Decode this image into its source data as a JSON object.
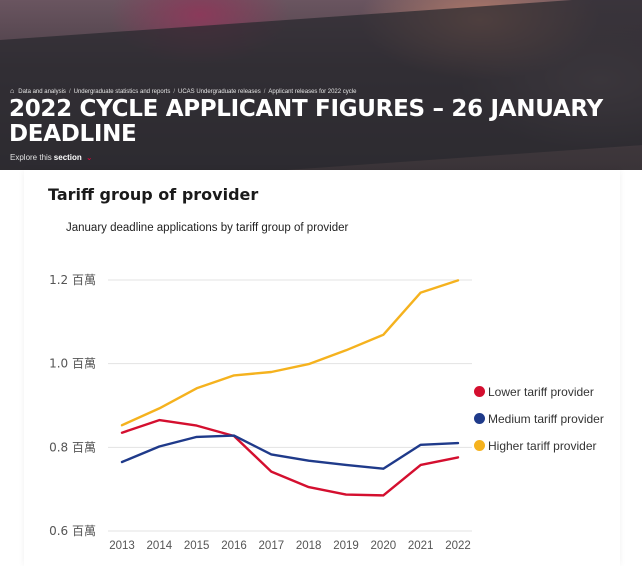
{
  "header": {
    "breadcrumbs": [
      "Data and analysis",
      "Undergraduate statistics and reports",
      "UCAS Undergraduate releases",
      "Applicant releases for 2022 cycle"
    ],
    "title": "2022 CYCLE APPLICANT FIGURES – 26 JANUARY DEADLINE",
    "explore_prefix": "Explore this",
    "explore_strong": "section"
  },
  "section": {
    "title": "Tariff group of provider"
  },
  "colors": {
    "lower": "#d40f2f",
    "medium": "#1f3a8a",
    "higher": "#f5b21e",
    "accent": "#e4003b"
  },
  "chart_data": {
    "type": "line",
    "title": "January deadline applications by tariff group of provider",
    "xlabel": "",
    "ylabel": "",
    "x": [
      "2013",
      "2014",
      "2015",
      "2016",
      "2017",
      "2018",
      "2019",
      "2020",
      "2021",
      "2022"
    ],
    "ylim": [
      0.6,
      1.2
    ],
    "yticks": [
      0.6,
      0.8,
      1.0,
      1.2
    ],
    "ytick_labels": [
      "0.6 百萬",
      "0.8 百萬",
      "1.0 百萬",
      "1.2 百萬"
    ],
    "grid": true,
    "legend_position": "right",
    "series": [
      {
        "name": "Lower tariff provider",
        "color": "#d40f2f",
        "values": [
          0.835,
          0.865,
          0.852,
          0.827,
          0.742,
          0.705,
          0.687,
          0.685,
          0.758,
          0.776
        ]
      },
      {
        "name": "Medium tariff provider",
        "color": "#1f3a8a",
        "values": [
          0.765,
          0.802,
          0.825,
          0.828,
          0.783,
          0.768,
          0.758,
          0.749,
          0.806,
          0.81
        ]
      },
      {
        "name": "Higher tariff provider",
        "color": "#f5b21e",
        "values": [
          0.853,
          0.893,
          0.941,
          0.972,
          0.98,
          0.999,
          1.032,
          1.069,
          1.17,
          1.199
        ]
      }
    ]
  }
}
